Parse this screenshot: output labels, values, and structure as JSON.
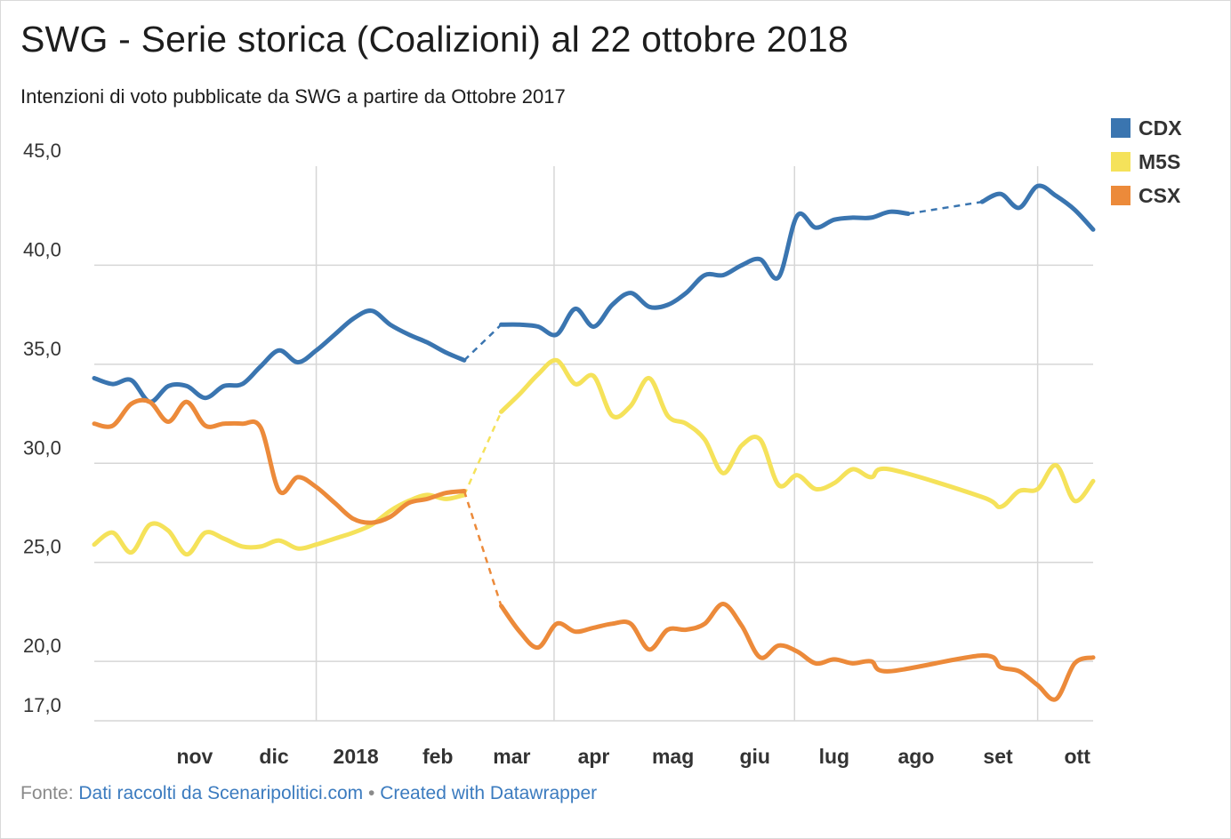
{
  "chart_data": {
    "type": "line",
    "title": "SWG - Serie storica (Coalizioni) al 22 ottobre 2018",
    "subtitle": "Intenzioni di voto pubblicate da SWG a partire da Ottobre 2017",
    "xlabel": "",
    "ylabel": "",
    "ylim": [
      17,
      45
    ],
    "yticks": [
      {
        "value": 45,
        "label": "45,0"
      },
      {
        "value": 40,
        "label": "40,0"
      },
      {
        "value": 35,
        "label": "35,0"
      },
      {
        "value": 30,
        "label": "30,0"
      },
      {
        "value": 25,
        "label": "25,0"
      },
      {
        "value": 20,
        "label": "20,0"
      },
      {
        "value": 17,
        "label": "17,0"
      }
    ],
    "xlim": [
      "2017-10-09",
      "2018-10-22"
    ],
    "x_axis_labels": [
      {
        "date": "2017-11-01",
        "label": "nov"
      },
      {
        "date": "2017-12-01",
        "label": "dic"
      },
      {
        "date": "2018-01-01",
        "label": "2018"
      },
      {
        "date": "2018-02-01",
        "label": "feb"
      },
      {
        "date": "2018-03-01",
        "label": "mar"
      },
      {
        "date": "2018-04-01",
        "label": "apr"
      },
      {
        "date": "2018-05-01",
        "label": "mag"
      },
      {
        "date": "2018-06-01",
        "label": "giu"
      },
      {
        "date": "2018-07-01",
        "label": "lug"
      },
      {
        "date": "2018-08-01",
        "label": "ago"
      },
      {
        "date": "2018-09-01",
        "label": "set"
      },
      {
        "date": "2018-10-01",
        "label": "ott"
      }
    ],
    "grid": true,
    "legend_position": "top-right",
    "series": [
      {
        "name": "CDX",
        "color": "#3a75b0",
        "points": [
          [
            "2017-10-09",
            34.3
          ],
          [
            "2017-10-16",
            34.0
          ],
          [
            "2017-10-23",
            34.2
          ],
          [
            "2017-10-30",
            33.1
          ],
          [
            "2017-11-06",
            33.9
          ],
          [
            "2017-11-13",
            33.9
          ],
          [
            "2017-11-20",
            33.3
          ],
          [
            "2017-11-27",
            33.9
          ],
          [
            "2017-12-04",
            34.0
          ],
          [
            "2017-12-11",
            34.9
          ],
          [
            "2017-12-18",
            35.7
          ],
          [
            "2017-12-25",
            35.1
          ],
          [
            "2018-01-01",
            35.7
          ],
          [
            "2018-01-08",
            36.5
          ],
          [
            "2018-01-15",
            37.3
          ],
          [
            "2018-01-22",
            37.7
          ],
          [
            "2018-01-29",
            37.0
          ],
          [
            "2018-02-05",
            36.5
          ],
          [
            "2018-02-12",
            36.1
          ],
          [
            "2018-02-19",
            35.6
          ],
          [
            "2018-02-26",
            35.2
          ],
          [
            "2018-03-12",
            37.0
          ],
          [
            "2018-03-19",
            37.0
          ],
          [
            "2018-03-26",
            36.9
          ],
          [
            "2018-04-02",
            36.5
          ],
          [
            "2018-04-09",
            37.8
          ],
          [
            "2018-04-16",
            36.9
          ],
          [
            "2018-04-23",
            38.0
          ],
          [
            "2018-04-30",
            38.6
          ],
          [
            "2018-05-07",
            37.9
          ],
          [
            "2018-05-14",
            38.0
          ],
          [
            "2018-05-21",
            38.6
          ],
          [
            "2018-05-28",
            39.5
          ],
          [
            "2018-06-04",
            39.5
          ],
          [
            "2018-06-11",
            40.0
          ],
          [
            "2018-06-18",
            40.3
          ],
          [
            "2018-06-25",
            39.4
          ],
          [
            "2018-07-02",
            42.5
          ],
          [
            "2018-07-09",
            41.9
          ],
          [
            "2018-07-16",
            42.3
          ],
          [
            "2018-07-23",
            42.4
          ],
          [
            "2018-07-30",
            42.4
          ],
          [
            "2018-08-06",
            42.7
          ],
          [
            "2018-08-13",
            42.6
          ],
          [
            "2018-09-10",
            43.2
          ],
          [
            "2018-09-17",
            43.6
          ],
          [
            "2018-09-24",
            42.9
          ],
          [
            "2018-10-01",
            44.0
          ],
          [
            "2018-10-08",
            43.5
          ],
          [
            "2018-10-15",
            42.8
          ],
          [
            "2018-10-22",
            41.8
          ]
        ]
      },
      {
        "name": "M5S",
        "color": "#f5e25a",
        "points": [
          [
            "2017-10-09",
            25.9
          ],
          [
            "2017-10-16",
            26.5
          ],
          [
            "2017-10-23",
            25.5
          ],
          [
            "2017-10-30",
            26.9
          ],
          [
            "2017-11-06",
            26.6
          ],
          [
            "2017-11-13",
            25.4
          ],
          [
            "2017-11-20",
            26.5
          ],
          [
            "2017-11-27",
            26.2
          ],
          [
            "2017-12-04",
            25.8
          ],
          [
            "2017-12-11",
            25.8
          ],
          [
            "2017-12-18",
            26.1
          ],
          [
            "2017-12-25",
            25.7
          ],
          [
            "2018-01-01",
            25.9
          ],
          [
            "2018-01-08",
            26.2
          ],
          [
            "2018-01-15",
            26.5
          ],
          [
            "2018-01-22",
            26.9
          ],
          [
            "2018-01-29",
            27.6
          ],
          [
            "2018-02-05",
            28.1
          ],
          [
            "2018-02-12",
            28.4
          ],
          [
            "2018-02-19",
            28.2
          ],
          [
            "2018-02-26",
            28.4
          ],
          [
            "2018-03-12",
            32.6
          ],
          [
            "2018-03-19",
            33.5
          ],
          [
            "2018-03-26",
            34.5
          ],
          [
            "2018-04-02",
            35.2
          ],
          [
            "2018-04-09",
            34.0
          ],
          [
            "2018-04-16",
            34.4
          ],
          [
            "2018-04-23",
            32.4
          ],
          [
            "2018-04-30",
            32.9
          ],
          [
            "2018-05-07",
            34.3
          ],
          [
            "2018-05-14",
            32.4
          ],
          [
            "2018-05-21",
            32.0
          ],
          [
            "2018-05-28",
            31.2
          ],
          [
            "2018-06-04",
            29.5
          ],
          [
            "2018-06-11",
            30.9
          ],
          [
            "2018-06-18",
            31.2
          ],
          [
            "2018-06-25",
            28.9
          ],
          [
            "2018-07-02",
            29.4
          ],
          [
            "2018-07-09",
            28.7
          ],
          [
            "2018-07-16",
            29.0
          ],
          [
            "2018-07-23",
            29.7
          ],
          [
            "2018-07-30",
            29.3
          ],
          [
            "2018-08-06",
            29.7
          ],
          [
            "2018-09-10",
            28.3
          ],
          [
            "2018-09-17",
            27.8
          ],
          [
            "2018-09-24",
            28.6
          ],
          [
            "2018-10-01",
            28.7
          ],
          [
            "2018-10-08",
            29.9
          ],
          [
            "2018-10-15",
            28.1
          ],
          [
            "2018-10-22",
            29.1
          ]
        ]
      },
      {
        "name": "CSX",
        "color": "#ec8a3a",
        "points": [
          [
            "2017-10-09",
            32.0
          ],
          [
            "2017-10-16",
            31.9
          ],
          [
            "2017-10-23",
            33.0
          ],
          [
            "2017-10-30",
            33.1
          ],
          [
            "2017-11-06",
            32.1
          ],
          [
            "2017-11-13",
            33.1
          ],
          [
            "2017-11-20",
            31.9
          ],
          [
            "2017-11-27",
            32.0
          ],
          [
            "2017-12-04",
            32.0
          ],
          [
            "2017-12-11",
            31.8
          ],
          [
            "2017-12-18",
            28.6
          ],
          [
            "2017-12-25",
            29.3
          ],
          [
            "2018-01-01",
            28.8
          ],
          [
            "2018-01-08",
            28.0
          ],
          [
            "2018-01-15",
            27.2
          ],
          [
            "2018-01-22",
            27.0
          ],
          [
            "2018-01-29",
            27.3
          ],
          [
            "2018-02-05",
            28.0
          ],
          [
            "2018-02-12",
            28.2
          ],
          [
            "2018-02-19",
            28.5
          ],
          [
            "2018-02-26",
            28.6
          ],
          [
            "2018-03-12",
            22.8
          ],
          [
            "2018-03-19",
            21.5
          ],
          [
            "2018-03-26",
            20.7
          ],
          [
            "2018-04-02",
            21.9
          ],
          [
            "2018-04-09",
            21.5
          ],
          [
            "2018-04-16",
            21.7
          ],
          [
            "2018-04-23",
            21.9
          ],
          [
            "2018-04-30",
            21.9
          ],
          [
            "2018-05-07",
            20.6
          ],
          [
            "2018-05-14",
            21.6
          ],
          [
            "2018-05-21",
            21.6
          ],
          [
            "2018-05-28",
            21.9
          ],
          [
            "2018-06-04",
            22.9
          ],
          [
            "2018-06-11",
            21.8
          ],
          [
            "2018-06-18",
            20.2
          ],
          [
            "2018-06-25",
            20.8
          ],
          [
            "2018-07-02",
            20.5
          ],
          [
            "2018-07-09",
            19.9
          ],
          [
            "2018-07-16",
            20.1
          ],
          [
            "2018-07-23",
            19.9
          ],
          [
            "2018-07-30",
            20.0
          ],
          [
            "2018-08-06",
            19.5
          ],
          [
            "2018-09-10",
            20.3
          ],
          [
            "2018-09-17",
            19.7
          ],
          [
            "2018-09-24",
            19.5
          ],
          [
            "2018-10-01",
            18.8
          ],
          [
            "2018-10-08",
            18.1
          ],
          [
            "2018-10-15",
            19.9
          ],
          [
            "2018-10-22",
            20.2
          ]
        ]
      }
    ],
    "dashed_gaps": [
      [
        "2018-02-26",
        "2018-03-12"
      ],
      [
        "2018-08-13",
        "2018-09-10"
      ]
    ]
  },
  "footer": {
    "prefix": "Fonte: ",
    "source": "Dati raccolti da Scenaripolitici.com",
    "separator": " • ",
    "credit": "Created with Datawrapper"
  }
}
